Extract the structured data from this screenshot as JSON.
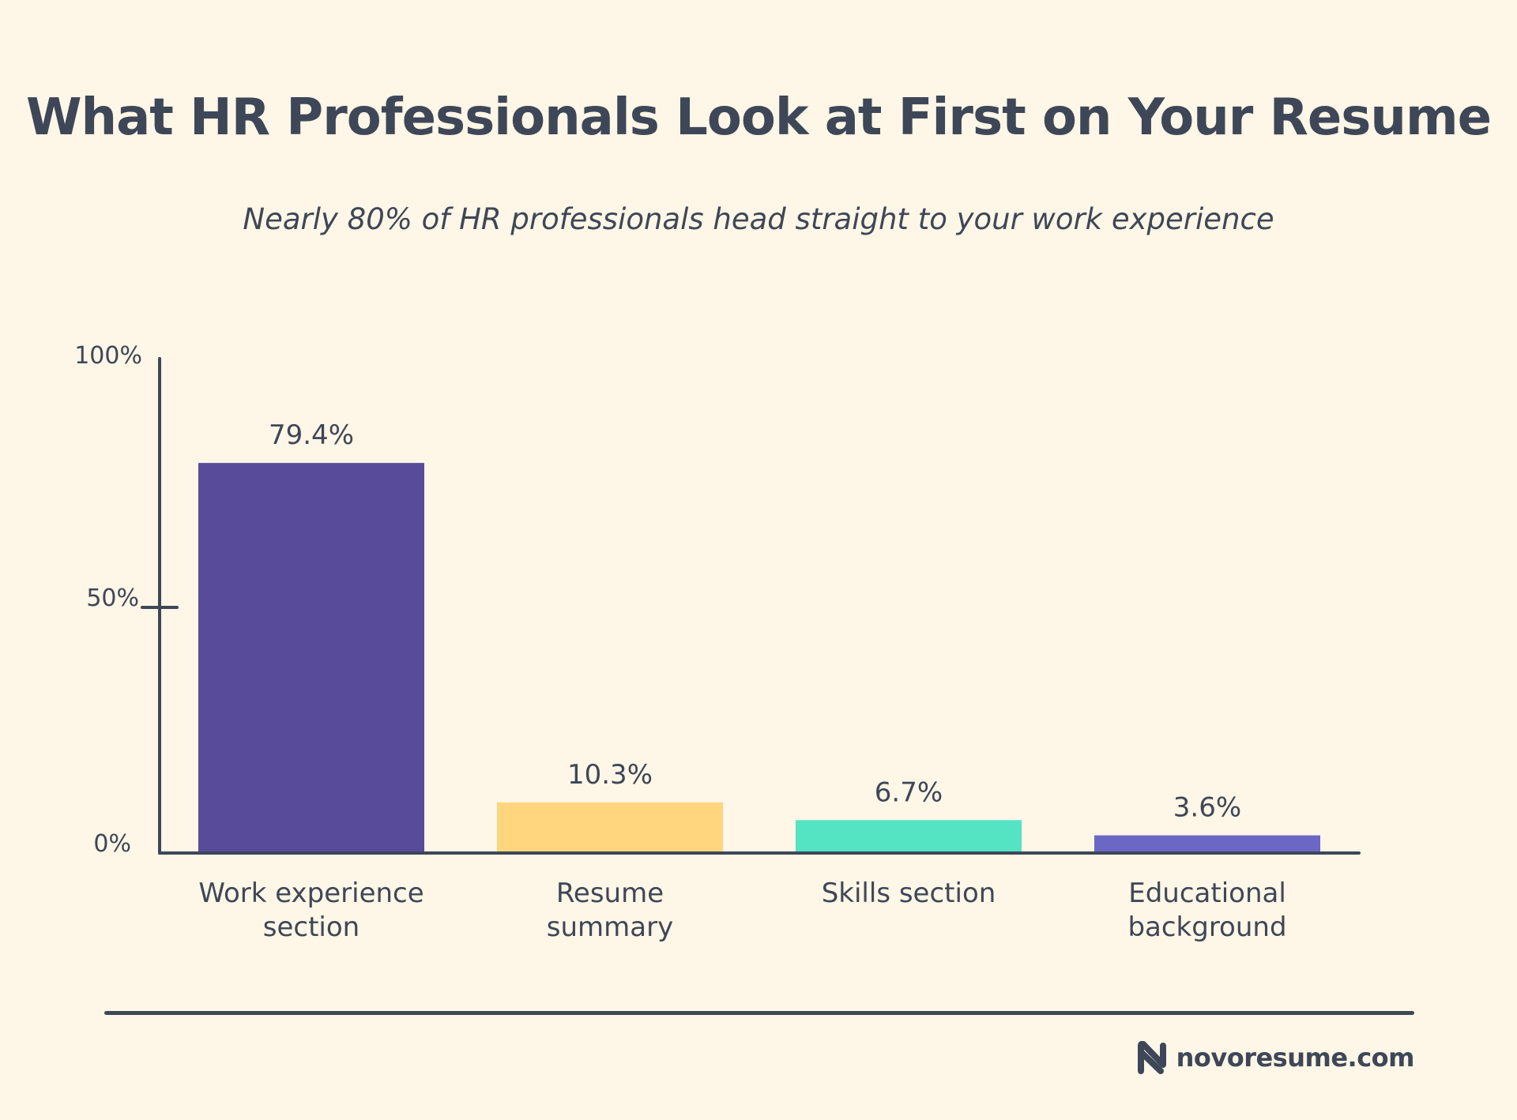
{
  "header": {
    "title": "What HR Professionals Look at First on Your Resume",
    "subtitle": "Nearly 80% of HR professionals head straight to your work experience"
  },
  "chart_data": {
    "type": "bar",
    "categories": [
      [
        "Work experience",
        "section"
      ],
      [
        "Resume",
        "summary"
      ],
      [
        "Skills section"
      ],
      [
        "Educational",
        "background"
      ]
    ],
    "values": [
      79.4,
      10.3,
      6.7,
      3.6
    ],
    "value_labels": [
      "79.4%",
      "10.3%",
      "6.7%",
      "3.6%"
    ],
    "colors": [
      "#584C9A",
      "#FFD57E",
      "#54E3C3",
      "#6A67C5"
    ],
    "y_ticks": [
      {
        "value": 0,
        "label": "0%"
      },
      {
        "value": 50,
        "label": "50%"
      },
      {
        "value": 100,
        "label": "100%"
      }
    ],
    "ylim": [
      0,
      100
    ],
    "grid": false,
    "legend": "none"
  },
  "footer": {
    "brand": "novoresume.com",
    "brand_icon": "novoresume-logo-icon"
  },
  "colors": {
    "background": "#FEF6E6",
    "text": "#3E4757",
    "axis": "#3E4757"
  }
}
